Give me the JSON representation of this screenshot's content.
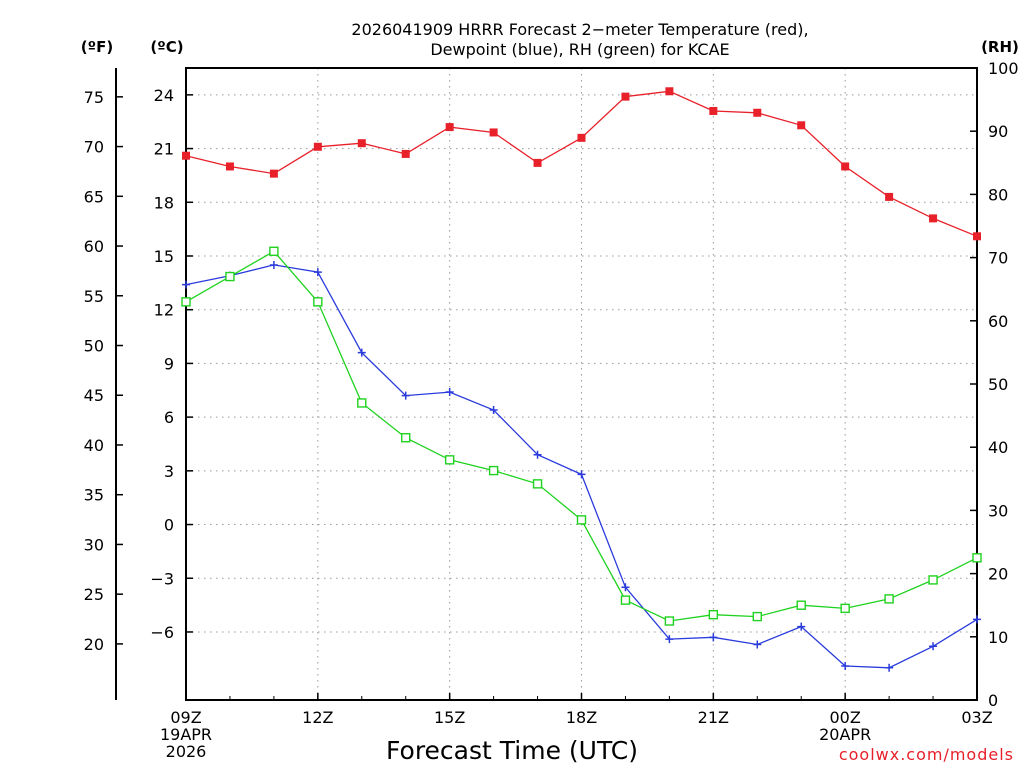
{
  "header": {
    "title_line1": "2026041909 HRRR Forecast 2−meter Temperature (red),",
    "title_line2": "Dewpoint (blue), RH (green) for KCAE"
  },
  "units": {
    "fahrenheit": "(ºF)",
    "celsius": "(ºC)",
    "rh": "(RH)"
  },
  "footer": {
    "xlabel": "Forecast Time (UTC)",
    "credit": "coolwx.com/models"
  },
  "chart_data": {
    "type": "line",
    "x_hours": [
      0,
      1,
      2,
      3,
      4,
      5,
      6,
      7,
      8,
      9,
      10,
      11,
      12,
      13,
      14,
      15,
      16,
      17,
      18
    ],
    "x_tick_labels": [
      {
        "hour": 0,
        "lines": [
          "09Z",
          "19APR",
          "2026"
        ]
      },
      {
        "hour": 3,
        "lines": [
          "12Z"
        ]
      },
      {
        "hour": 6,
        "lines": [
          "15Z"
        ]
      },
      {
        "hour": 9,
        "lines": [
          "18Z"
        ]
      },
      {
        "hour": 12,
        "lines": [
          "21Z"
        ]
      },
      {
        "hour": 15,
        "lines": [
          "00Z",
          "20APR"
        ]
      },
      {
        "hour": 18,
        "lines": [
          "03Z"
        ]
      }
    ],
    "celsius_axis": {
      "range": [
        -9.8,
        25.5
      ],
      "ticks": [
        24,
        21,
        18,
        15,
        12,
        9,
        6,
        3,
        0,
        -3,
        -6
      ],
      "tick_labels": [
        "24",
        "21",
        "18",
        "15",
        "12",
        "9",
        "6",
        "3",
        "0",
        "−3",
        "−6"
      ]
    },
    "fahrenheit_ticks": [
      75,
      70,
      65,
      60,
      55,
      50,
      45,
      40,
      35,
      30,
      25,
      20
    ],
    "rh_axis": {
      "range": [
        0,
        100
      ],
      "ticks": [
        0,
        10,
        20,
        30,
        40,
        50,
        60,
        70,
        80,
        90,
        100
      ]
    },
    "series": [
      {
        "name": "2-meter Temperature",
        "unit": "C",
        "color": "#e8202a",
        "marker": "filled-square",
        "values": [
          20.6,
          20.0,
          19.6,
          21.1,
          21.3,
          20.7,
          22.2,
          21.9,
          20.2,
          21.6,
          23.9,
          24.2,
          23.1,
          23.0,
          22.3,
          20.0,
          18.3,
          17.1,
          16.1
        ]
      },
      {
        "name": "Dewpoint",
        "unit": "C",
        "color": "#2a3bdc",
        "marker": "plus",
        "values": [
          13.4,
          13.9,
          14.5,
          14.1,
          9.6,
          7.2,
          7.4,
          6.4,
          3.9,
          2.8,
          -3.5,
          -6.4,
          -6.3,
          -6.7,
          -5.7,
          -7.9,
          -8.0,
          -6.8,
          -5.3
        ]
      },
      {
        "name": "Relative Humidity",
        "unit": "%",
        "color": "#1fd21f",
        "marker": "open-square",
        "values": [
          63,
          67,
          71,
          63,
          47,
          41.5,
          38,
          36.3,
          34.2,
          28.5,
          15.8,
          12.5,
          13.5,
          13.2,
          15,
          14.5,
          16,
          19,
          22.5
        ]
      }
    ]
  }
}
